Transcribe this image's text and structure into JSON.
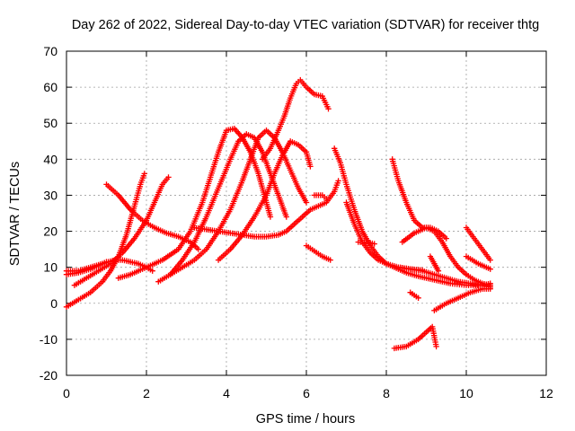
{
  "chart_data": {
    "type": "scatter",
    "title": "Day 262 of 2022, Sidereal Day-to-day VTEC variation (SDTVAR) for receiver thtg",
    "xlabel": "GPS time / hours",
    "ylabel": "SDTVAR / TECUs",
    "xlim": [
      0,
      12
    ],
    "ylim": [
      -20,
      70
    ],
    "xticks": [
      "0",
      "2",
      "4",
      "6",
      "8",
      "10",
      "12"
    ],
    "yticks": [
      "-20",
      "-10",
      "0",
      "10",
      "20",
      "30",
      "40",
      "50",
      "60",
      "70"
    ],
    "grid": true,
    "legend": "none",
    "marker": "+",
    "color": "#ff0000",
    "series": [
      {
        "x": [
          0.0,
          0.3,
          0.6,
          0.9,
          1.1,
          1.3,
          1.5,
          1.7,
          1.85,
          1.95
        ],
        "y": [
          -1,
          1,
          3,
          6,
          9,
          13,
          19,
          27,
          33,
          36
        ]
      },
      {
        "x": [
          0.0,
          0.3,
          0.6,
          0.9,
          1.2,
          1.4,
          1.6,
          1.8,
          2.0,
          2.15
        ],
        "y": [
          9,
          9,
          10,
          11,
          12,
          12,
          11.5,
          11,
          10,
          9
        ]
      },
      {
        "x": [
          0.0,
          0.3,
          0.6,
          0.8,
          1.0
        ],
        "y": [
          8,
          8.5,
          9.5,
          10.5,
          11.5
        ]
      },
      {
        "x": [
          0.2,
          0.5,
          0.8,
          1.1,
          1.4,
          1.7,
          2.0,
          2.2,
          2.4,
          2.55
        ],
        "y": [
          5,
          7,
          9,
          11,
          14,
          18,
          23,
          28,
          33,
          35
        ]
      },
      {
        "x": [
          1.0,
          1.3,
          1.6,
          1.9,
          2.2,
          2.5,
          2.8,
          3.1,
          3.3
        ],
        "y": [
          33,
          30,
          26,
          23,
          21,
          19.5,
          18.5,
          17,
          15
        ]
      },
      {
        "x": [
          1.3,
          1.6,
          2.0,
          2.4,
          2.8,
          3.1,
          3.4,
          3.6,
          3.8,
          4.0,
          4.2,
          4.4,
          4.6,
          4.8,
          5.0,
          5.1
        ],
        "y": [
          7,
          8,
          10,
          12,
          15,
          20,
          28,
          35,
          42,
          48,
          48.5,
          46,
          42,
          36,
          28,
          24
        ]
      },
      {
        "x": [
          2.3,
          2.6,
          2.9,
          3.2,
          3.5,
          3.8,
          4.1,
          4.3,
          4.5,
          4.7,
          4.9,
          5.1,
          5.3,
          5.5
        ],
        "y": [
          6,
          8,
          12,
          17,
          24,
          32,
          40,
          45,
          47,
          46,
          42,
          36,
          30,
          24
        ]
      },
      {
        "x": [
          2.6,
          2.9,
          3.2,
          3.5,
          3.8,
          4.1,
          4.4,
          4.6,
          4.8,
          5.0,
          5.2,
          5.4,
          5.6,
          5.8,
          6.0
        ],
        "y": [
          8,
          10,
          12,
          15,
          20,
          26,
          34,
          40,
          46,
          48,
          46,
          42,
          37,
          32,
          28
        ]
      },
      {
        "x": [
          3.2,
          3.5,
          3.8,
          4.1,
          4.4,
          4.7,
          5.0,
          5.3,
          5.5,
          5.7,
          5.9,
          6.1,
          6.3,
          6.5,
          6.7,
          6.8
        ],
        "y": [
          21,
          20.5,
          20,
          19.5,
          19,
          18.5,
          18.5,
          19,
          20,
          22,
          24,
          26,
          27,
          28,
          31,
          34
        ]
      },
      {
        "x": [
          3.8,
          4.1,
          4.4,
          4.7,
          5.0,
          5.2,
          5.4,
          5.6,
          5.8,
          6.0,
          6.1
        ],
        "y": [
          12,
          15,
          19,
          24,
          30,
          36,
          41,
          45,
          44,
          42,
          38
        ]
      },
      {
        "x": [
          4.9,
          5.1,
          5.3,
          5.45,
          5.6,
          5.75,
          5.85,
          6.0,
          6.2,
          6.4,
          6.55
        ],
        "y": [
          40,
          43,
          48,
          52,
          57,
          61,
          62,
          60,
          58,
          57.5,
          54
        ]
      },
      {
        "x": [
          6.0,
          6.2,
          6.4,
          6.6
        ],
        "y": [
          16,
          14.5,
          13,
          12
        ]
      },
      {
        "x": [
          6.2,
          6.4,
          6.5
        ],
        "y": [
          30,
          30,
          29
        ]
      },
      {
        "x": [
          6.7,
          6.85,
          7.0,
          7.2,
          7.4,
          7.6,
          7.8,
          8.0,
          8.2,
          8.5,
          8.8,
          9.2,
          9.6,
          10.0,
          10.4,
          10.6
        ],
        "y": [
          43,
          39,
          33,
          26,
          20,
          16,
          13,
          11,
          10,
          8.5,
          7.5,
          6.5,
          5.5,
          5,
          5,
          5.5
        ]
      },
      {
        "x": [
          7.0,
          7.2,
          7.4,
          7.6,
          7.8,
          8.0,
          8.3,
          8.6,
          8.9,
          9.2,
          9.5,
          9.8,
          10.1,
          10.4,
          10.6
        ],
        "y": [
          28,
          22,
          17,
          14,
          12,
          11,
          10,
          9.5,
          9,
          8,
          7,
          6,
          5.5,
          5,
          4.5
        ]
      },
      {
        "x": [
          7.3,
          7.5,
          7.7
        ],
        "y": [
          17,
          17,
          16.5
        ]
      },
      {
        "x": [
          8.15,
          8.3,
          8.5,
          8.7,
          8.9,
          9.1,
          9.3,
          9.5
        ],
        "y": [
          40,
          34,
          28,
          23,
          21,
          21,
          20,
          18
        ]
      },
      {
        "x": [
          8.4,
          8.7,
          9.0,
          9.2,
          9.4,
          9.6,
          9.8,
          10.0,
          10.2,
          10.4,
          10.6
        ],
        "y": [
          17,
          19.5,
          21,
          20,
          17,
          13,
          10,
          8,
          6.5,
          5.5,
          5
        ]
      },
      {
        "x": [
          8.2,
          8.5,
          8.8,
          9.0,
          9.15,
          9.25
        ],
        "y": [
          -12.5,
          -12,
          -10,
          -8,
          -6.5,
          -12
        ]
      },
      {
        "x": [
          8.6,
          8.8
        ],
        "y": [
          3,
          1.5
        ]
      },
      {
        "x": [
          9.2,
          9.5,
          9.8,
          10.1,
          10.4,
          10.6
        ],
        "y": [
          -2,
          0,
          1.5,
          3,
          4,
          4
        ]
      },
      {
        "x": [
          9.1,
          9.2,
          9.3
        ],
        "y": [
          13,
          11,
          9
        ]
      },
      {
        "x": [
          10.0,
          10.2,
          10.4,
          10.6
        ],
        "y": [
          21,
          18,
          15,
          12
        ]
      },
      {
        "x": [
          10.0,
          10.3,
          10.6
        ],
        "y": [
          13,
          11,
          9.5
        ]
      },
      {
        "x": [
          8.3,
          8.6,
          8.9
        ],
        "y": [
          10,
          9.5,
          9.2
        ]
      }
    ]
  }
}
